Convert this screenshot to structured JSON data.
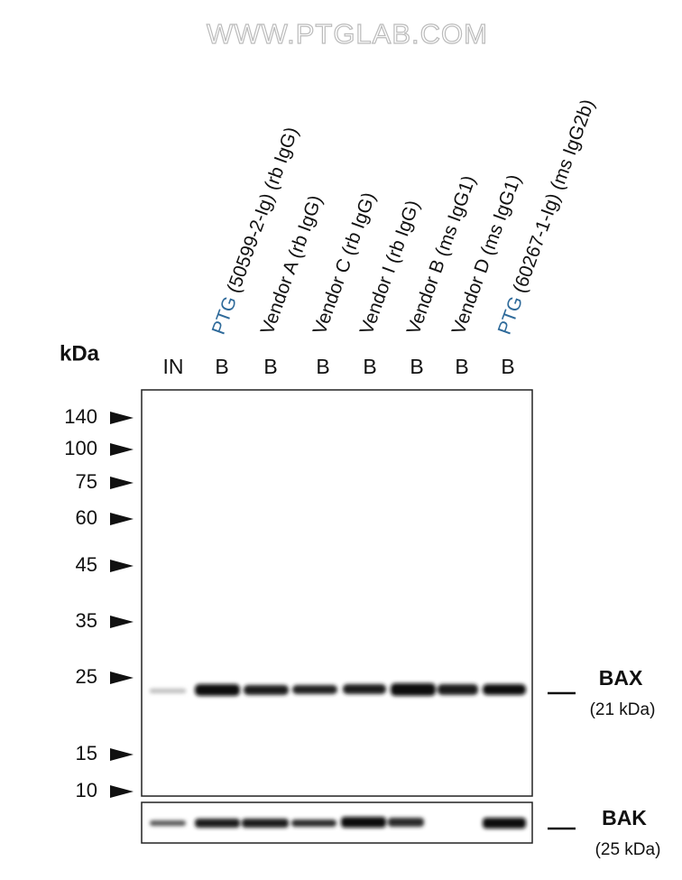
{
  "watermark": "WWW.PTGLAB.COM",
  "kda_label": "kDa",
  "lanes": [
    {
      "code": "IN"
    },
    {
      "code": "B",
      "brand": "PTG",
      "header": "(50599-2-Ig) (rb IgG)"
    },
    {
      "code": "B",
      "header": "Vendor A (rb IgG)"
    },
    {
      "code": "B",
      "header": "Vendor C (rb IgG)"
    },
    {
      "code": "B",
      "header": "Vendor I (rb IgG)"
    },
    {
      "code": "B",
      "header": "Vendor B (ms IgG1)"
    },
    {
      "code": "B",
      "header": "Vendor D (ms IgG1)"
    },
    {
      "code": "B",
      "brand": "PTG",
      "header": "(60267-1-Ig) (ms IgG2b)"
    }
  ],
  "markers": [
    "140",
    "100",
    "75",
    "60",
    "45",
    "35",
    "25",
    "15",
    "10"
  ],
  "targets": [
    {
      "name": "BAX",
      "size": "(21 kDa)"
    },
    {
      "name": "BAK",
      "size": "(25 kDa)"
    }
  ]
}
